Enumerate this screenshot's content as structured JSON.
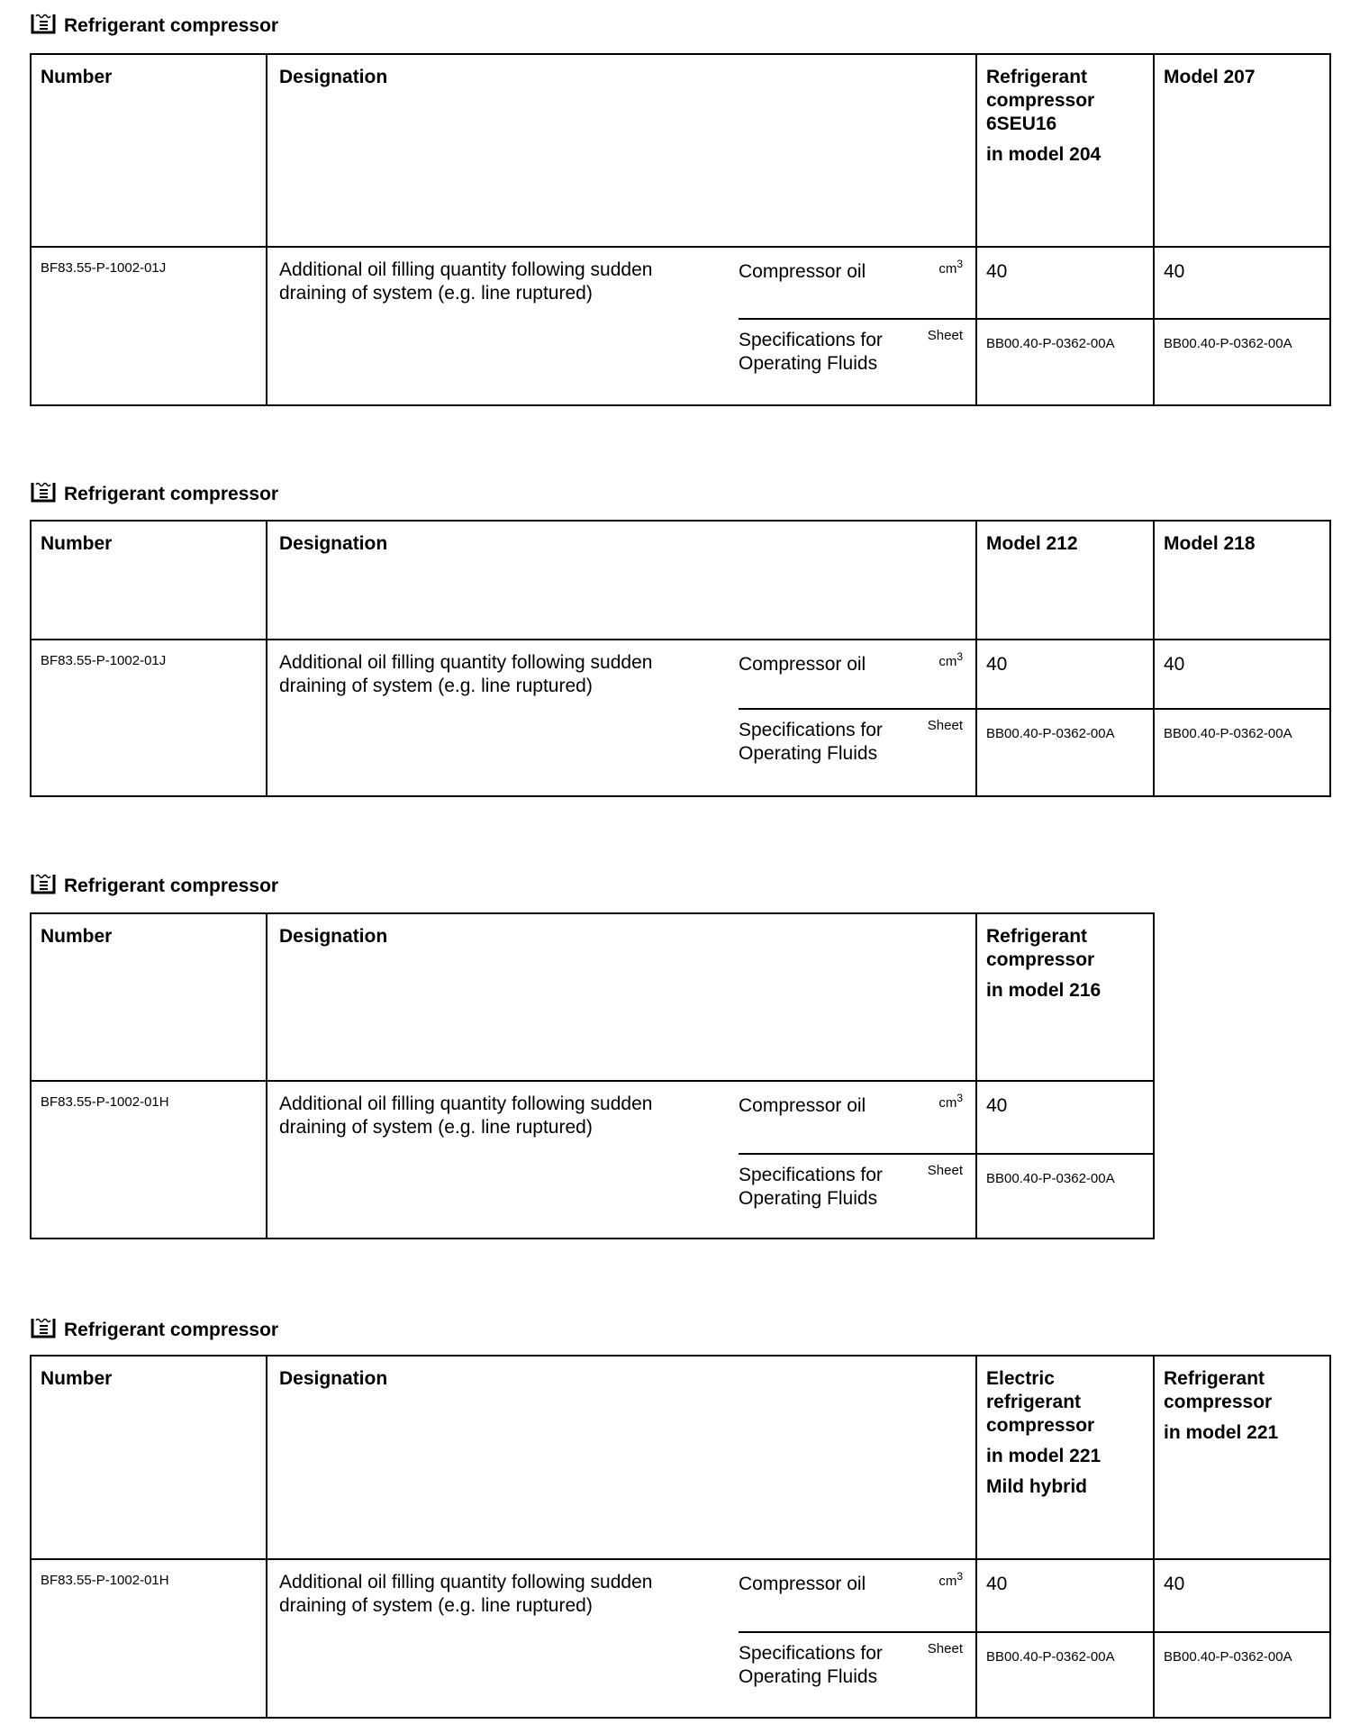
{
  "sections": [
    {
      "title": "Refrigerant compressor",
      "icon": "document-list-icon",
      "headers": {
        "number": "Number",
        "designation": "Designation"
      },
      "models": [
        {
          "lines": [
            "Refrigerant",
            "compressor",
            "6SEU16"
          ],
          "sub": [
            "in model 204"
          ]
        },
        {
          "lines": [
            "Model 207"
          ],
          "sub": []
        }
      ],
      "number": "BF83.55-P-1002-01J",
      "designation": "Additional oil filling quantity following sudden draining of system (e.g. line ruptured)",
      "rows": [
        {
          "label": "Compressor oil",
          "unit": "cm",
          "unit_sup": "3",
          "values": [
            "40",
            "40"
          ]
        },
        {
          "label": "Specifications for Operating Fluids",
          "unit": "Sheet",
          "unit_sup": "",
          "values": [
            "BB00.40-P-0362-00A",
            "BB00.40-P-0362-00A"
          ]
        }
      ]
    },
    {
      "title": "Refrigerant compressor",
      "icon": "document-list-icon",
      "headers": {
        "number": "Number",
        "designation": "Designation"
      },
      "models": [
        {
          "lines": [
            "Model 212"
          ],
          "sub": []
        },
        {
          "lines": [
            "Model 218"
          ],
          "sub": []
        }
      ],
      "number": "BF83.55-P-1002-01J",
      "designation": "Additional oil filling quantity following sudden draining of system (e.g. line ruptured)",
      "rows": [
        {
          "label": "Compressor oil",
          "unit": "cm",
          "unit_sup": "3",
          "values": [
            "40",
            "40"
          ]
        },
        {
          "label": "Specifications for Operating Fluids",
          "unit": "Sheet",
          "unit_sup": "",
          "values": [
            "BB00.40-P-0362-00A",
            "BB00.40-P-0362-00A"
          ]
        }
      ]
    },
    {
      "title": "Refrigerant compressor",
      "icon": "document-list-icon",
      "headers": {
        "number": "Number",
        "designation": "Designation"
      },
      "models": [
        {
          "lines": [
            "Refrigerant",
            "compressor"
          ],
          "sub": [
            "in model 216"
          ]
        }
      ],
      "number": "BF83.55-P-1002-01H",
      "designation": "Additional oil filling quantity following sudden draining of system (e.g. line ruptured)",
      "rows": [
        {
          "label": "Compressor oil",
          "unit": "cm",
          "unit_sup": "3",
          "values": [
            "40"
          ]
        },
        {
          "label": "Specifications for Operating Fluids",
          "unit": "Sheet",
          "unit_sup": "",
          "values": [
            "BB00.40-P-0362-00A"
          ]
        }
      ]
    },
    {
      "title": "Refrigerant compressor",
      "icon": "document-list-icon",
      "headers": {
        "number": "Number",
        "designation": "Designation"
      },
      "models": [
        {
          "lines": [
            "Electric",
            "refrigerant",
            "compressor"
          ],
          "sub": [
            "in model 221",
            "Mild hybrid"
          ]
        },
        {
          "lines": [
            "Refrigerant",
            "compressor"
          ],
          "sub": [
            "in model 221"
          ]
        }
      ],
      "number": "BF83.55-P-1002-01H",
      "designation": "Additional oil filling quantity following sudden draining of system (e.g. line ruptured)",
      "rows": [
        {
          "label": "Compressor oil",
          "unit": "cm",
          "unit_sup": "3",
          "values": [
            "40",
            "40"
          ]
        },
        {
          "label": "Specifications for Operating Fluids",
          "unit": "Sheet",
          "unit_sup": "",
          "values": [
            "BB00.40-P-0362-00A",
            "BB00.40-P-0362-00A"
          ]
        }
      ]
    }
  ]
}
